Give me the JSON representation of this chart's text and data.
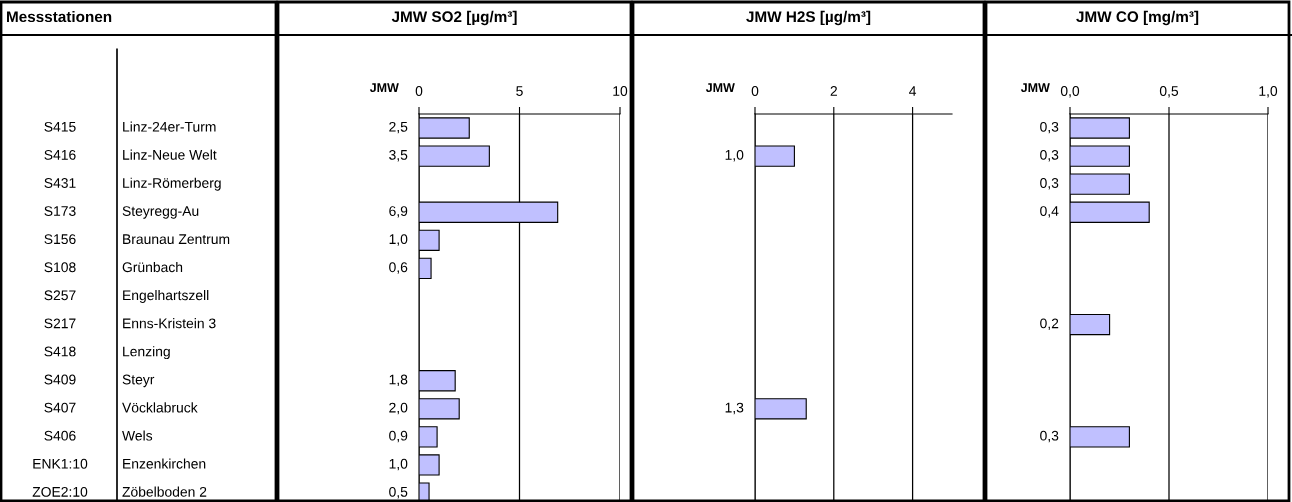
{
  "chart_data": [
    {
      "type": "other",
      "title": "Messstationen",
      "annotations": [
        "S415",
        "Linz-24er-Turm",
        "S416",
        "Linz-Neue Welt",
        "S431",
        "Linz-Römerberg",
        "S173",
        "Steyregg-Au",
        "S156",
        "Braunau Zentrum",
        "S108",
        "Grünbach",
        "S257",
        "Engelhartszell",
        "S217",
        "Enns-Kristein 3",
        "S418",
        "Lenzing",
        "S409",
        "Steyr",
        "S407",
        "Vöcklabruck",
        "S406",
        "Wels",
        "ENK1:10",
        "Enzenkirchen",
        "ZOE2:10",
        "Zöbelboden 2"
      ]
    },
    {
      "type": "bar",
      "orientation": "horizontal",
      "title": "JMW SO2 [µg/m³]",
      "annotations": [
        "JMW"
      ],
      "tick_labels": "x",
      "grid": "x",
      "color": "#c0c0ff",
      "categories": [
        null,
        null,
        null,
        null,
        null,
        null,
        null,
        null,
        null,
        null,
        null,
        null,
        null,
        null
      ],
      "values": [
        2.5,
        3.5,
        null,
        6.9,
        1.0,
        0.6,
        null,
        null,
        null,
        1.8,
        2.0,
        0.9,
        1.0,
        0.5
      ],
      "value_labels": [
        "2,5",
        "3,5",
        null,
        "6,9",
        "1,0",
        "0,6",
        null,
        null,
        null,
        "1,8",
        "2,0",
        "0,9",
        "1,0",
        "0,5"
      ],
      "xlim": [
        0,
        10
      ],
      "xticks": [
        0,
        5,
        10
      ]
    },
    {
      "type": "bar",
      "orientation": "horizontal",
      "title": "JMW H2S [µg/m³]",
      "annotations": [
        "JMW"
      ],
      "tick_labels": "x",
      "grid": "x",
      "color": "#c0c0ff",
      "categories": [
        null,
        null,
        null,
        null,
        null,
        null,
        null,
        null,
        null,
        null,
        null,
        null,
        null,
        null
      ],
      "values": [
        null,
        1.0,
        null,
        null,
        null,
        null,
        null,
        null,
        null,
        null,
        1.3,
        null,
        null,
        null
      ],
      "value_labels": [
        null,
        "1,0",
        null,
        null,
        null,
        null,
        null,
        null,
        null,
        null,
        "1,3",
        null,
        null,
        null
      ],
      "xlim": [
        0,
        5
      ],
      "xticks": [
        0,
        2,
        4
      ]
    },
    {
      "type": "bar",
      "orientation": "horizontal",
      "title": "JMW CO [mg/m³]",
      "annotations": [
        "JMW"
      ],
      "tick_labels": "x",
      "grid": "x",
      "color": "#c0c0ff",
      "categories": [
        null,
        null,
        null,
        null,
        null,
        null,
        null,
        null,
        null,
        null,
        null,
        null,
        null,
        null
      ],
      "values": [
        0.3,
        0.3,
        0.3,
        0.4,
        null,
        null,
        null,
        0.2,
        null,
        null,
        null,
        0.3,
        null,
        null
      ],
      "value_labels": [
        "0,3",
        "0,3",
        "0,3",
        "0,4",
        null,
        null,
        null,
        "0,2",
        null,
        null,
        null,
        "0,3",
        null,
        null
      ],
      "xlim": [
        0,
        1.0
      ],
      "xticks": [
        {
          "value": 0,
          "label": "0,0"
        },
        {
          "value": 0.5,
          "label": "0,5"
        },
        {
          "value": 1.0,
          "label": "1,0"
        }
      ]
    }
  ]
}
